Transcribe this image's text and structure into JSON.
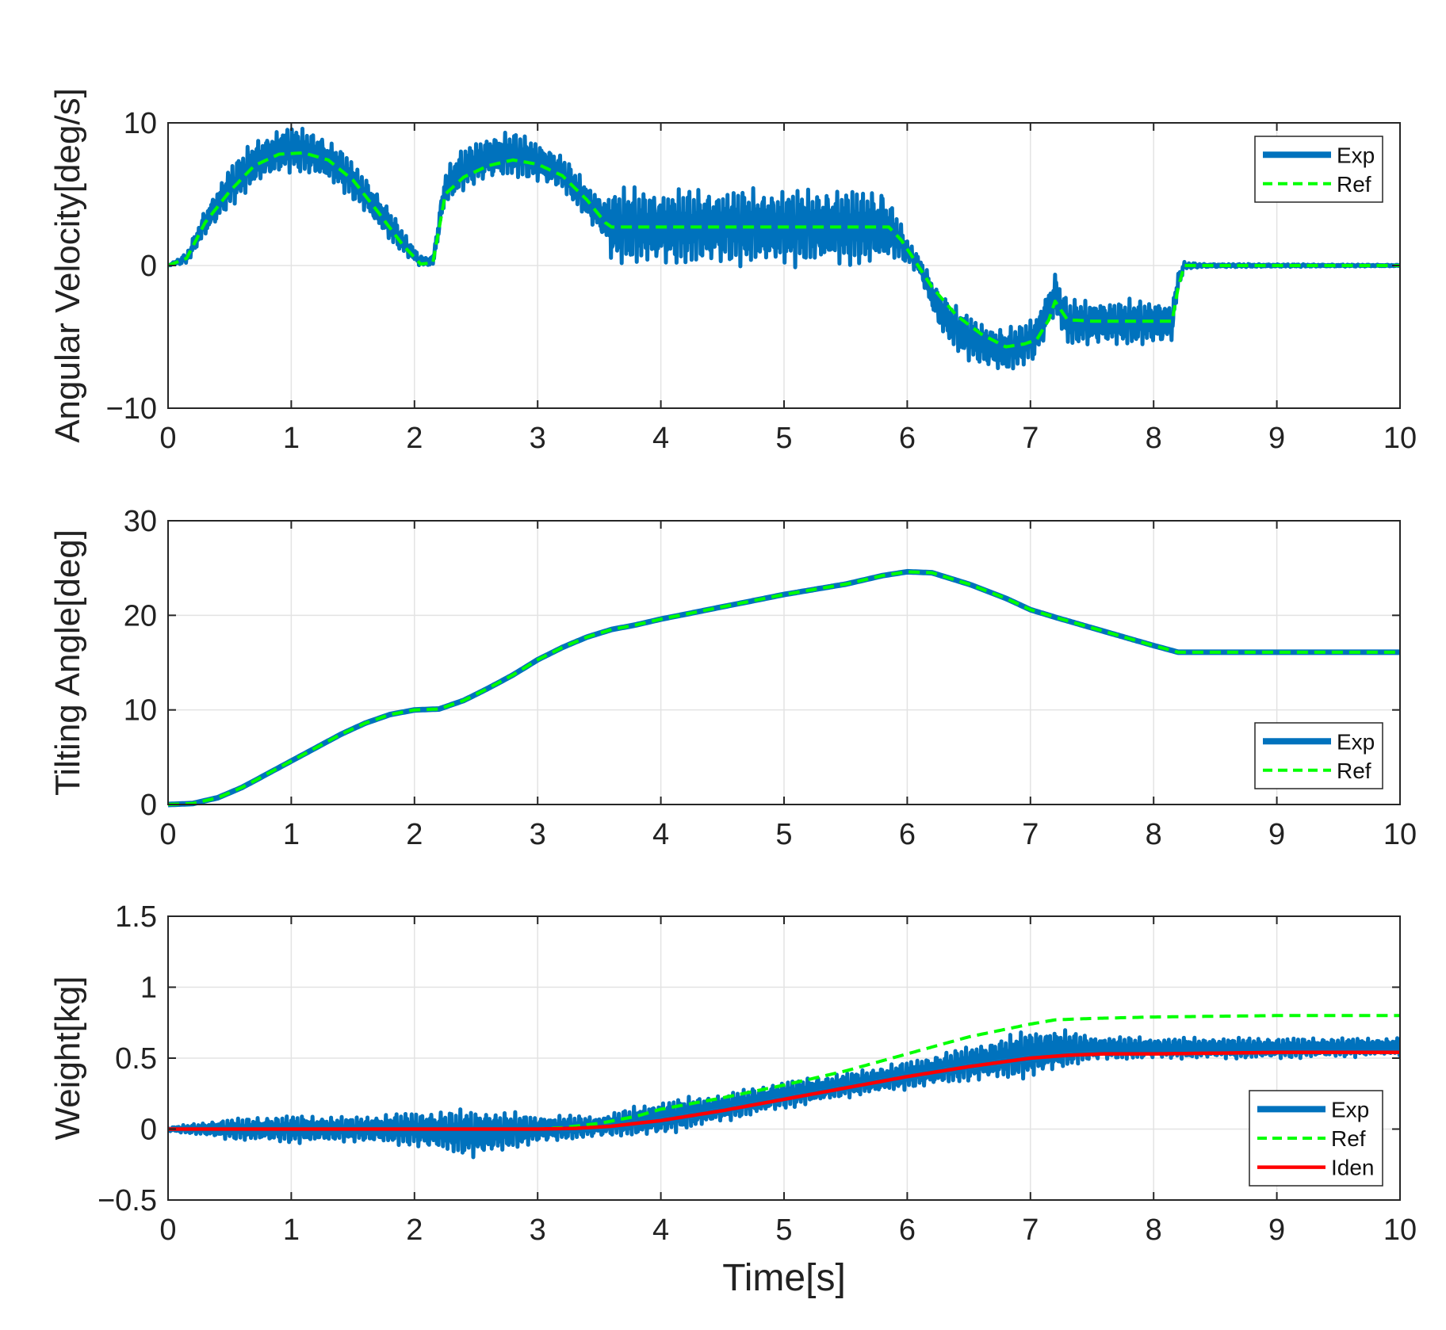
{
  "chart_data": [
    {
      "type": "line",
      "ylabel": "Angular Velocity[deg/s]",
      "xlabel": "",
      "xlim": [
        0,
        10
      ],
      "ylim": [
        -10,
        10
      ],
      "xticks": [
        "0",
        "1",
        "2",
        "3",
        "4",
        "5",
        "6",
        "7",
        "8",
        "9",
        "10"
      ],
      "yticks": [
        "10",
        "0",
        "−10"
      ],
      "ytick_values": [
        10,
        0,
        -10
      ],
      "grid": true,
      "legend_position": "top-right",
      "series": [
        {
          "name": "Exp",
          "color": "#0072BD",
          "style": "solid-noisy",
          "x": [
            0,
            0.15,
            0.3,
            0.5,
            0.7,
            0.9,
            1.0,
            1.2,
            1.4,
            1.6,
            1.8,
            1.95,
            2.05,
            2.15,
            2.25,
            2.4,
            2.6,
            2.8,
            3.0,
            3.2,
            3.4,
            3.55,
            3.6,
            4.0,
            4.5,
            5.0,
            5.5,
            5.8,
            5.9,
            6.0,
            6.1,
            6.25,
            6.4,
            6.6,
            6.8,
            6.95,
            7.05,
            7.15,
            7.2,
            7.3,
            7.5,
            7.8,
            8.1,
            8.15,
            8.2,
            8.25,
            8.4,
            10
          ],
          "y": [
            0,
            0.5,
            3,
            5.5,
            7.2,
            8,
            8.2,
            7.8,
            6.8,
            5,
            2.8,
            1.2,
            0.3,
            0.3,
            5.5,
            6.8,
            7.6,
            7.8,
            7.3,
            6.5,
            4.5,
            3.2,
            2.8,
            2.7,
            2.7,
            2.7,
            2.7,
            2.7,
            2.2,
            1,
            0,
            -3,
            -4.5,
            -5.5,
            -6,
            -5.5,
            -5,
            -3,
            -2,
            -4,
            -4,
            -4,
            -4,
            -4,
            -1,
            0,
            0,
            0
          ],
          "noise_amplitude": [
            0,
            0.3,
            0.8,
            1.2,
            1.3,
            1.3,
            1.3,
            1.3,
            1.2,
            1.0,
            1.0,
            0.5,
            0.3,
            0.3,
            1.0,
            1.2,
            1.3,
            1.3,
            1.2,
            1.0,
            1.0,
            1.3,
            2.2,
            2.2,
            2.2,
            2.2,
            2.2,
            2.2,
            1.5,
            0.7,
            0.5,
            1.2,
            1.3,
            1.3,
            1.3,
            1.2,
            1.3,
            1.3,
            1.3,
            1.3,
            1.3,
            1.3,
            1.3,
            1.0,
            0.5,
            0.2,
            0.1,
            0.05
          ]
        },
        {
          "name": "Ref",
          "color": "#00FF00",
          "style": "dashed",
          "x": [
            0,
            0.15,
            0.3,
            0.5,
            0.7,
            0.9,
            1.1,
            1.3,
            1.5,
            1.7,
            1.9,
            2.05,
            2.15,
            2.25,
            2.4,
            2.6,
            2.8,
            3.0,
            3.2,
            3.4,
            3.55,
            3.6,
            4.0,
            5.0,
            5.85,
            5.95,
            6.05,
            6.2,
            6.4,
            6.6,
            6.8,
            6.95,
            7.05,
            7.15,
            7.2,
            7.3,
            7.5,
            8.0,
            8.15,
            8.2,
            8.25,
            10
          ],
          "y": [
            0,
            0.5,
            3,
            5.2,
            7,
            7.8,
            7.9,
            7.4,
            6,
            3.8,
            1.5,
            0.1,
            0.2,
            5,
            6.2,
            7,
            7.4,
            7.1,
            6.3,
            4.6,
            3,
            2.7,
            2.7,
            2.7,
            2.7,
            1.8,
            0.5,
            -1.5,
            -3.5,
            -4.8,
            -5.7,
            -5.5,
            -5.2,
            -3.8,
            -2.5,
            -3.8,
            -3.9,
            -3.9,
            -3.9,
            -1.5,
            0,
            0
          ]
        }
      ]
    },
    {
      "type": "line",
      "ylabel": "Tilting Angle[deg]",
      "xlabel": "",
      "xlim": [
        0,
        10
      ],
      "ylim": [
        0,
        30
      ],
      "xticks": [
        "0",
        "1",
        "2",
        "3",
        "4",
        "5",
        "6",
        "7",
        "8",
        "9",
        "10"
      ],
      "yticks": [
        "30",
        "20",
        "10",
        "0"
      ],
      "ytick_values": [
        30,
        20,
        10,
        0
      ],
      "grid": true,
      "legend_position": "bottom-right",
      "series": [
        {
          "name": "Exp",
          "color": "#0072BD",
          "style": "solid",
          "x": [
            0,
            0.2,
            0.4,
            0.6,
            0.8,
            1.0,
            1.2,
            1.4,
            1.6,
            1.8,
            2.0,
            2.2,
            2.4,
            2.6,
            2.8,
            3.0,
            3.2,
            3.4,
            3.6,
            3.8,
            4.0,
            4.5,
            5.0,
            5.5,
            5.8,
            6.0,
            6.2,
            6.5,
            6.8,
            7.0,
            7.2,
            7.6,
            8.0,
            8.2,
            8.4,
            10
          ],
          "y": [
            0,
            0.1,
            0.7,
            1.8,
            3.2,
            4.6,
            6.0,
            7.4,
            8.6,
            9.5,
            10.0,
            10.1,
            11.0,
            12.3,
            13.7,
            15.3,
            16.6,
            17.7,
            18.5,
            19.0,
            19.6,
            20.9,
            22.2,
            23.3,
            24.2,
            24.6,
            24.5,
            23.3,
            21.8,
            20.6,
            19.8,
            18.3,
            16.8,
            16.1,
            16.1,
            16.1
          ]
        },
        {
          "name": "Ref",
          "color": "#00FF00",
          "style": "dashed",
          "x": [
            0,
            0.2,
            0.4,
            0.6,
            0.8,
            1.0,
            1.2,
            1.4,
            1.6,
            1.8,
            2.0,
            2.2,
            2.4,
            2.6,
            2.8,
            3.0,
            3.2,
            3.4,
            3.6,
            3.8,
            4.0,
            4.5,
            5.0,
            5.5,
            5.8,
            6.0,
            6.2,
            6.5,
            6.8,
            7.0,
            7.2,
            7.6,
            8.0,
            8.2,
            8.4,
            10
          ],
          "y": [
            0,
            0.1,
            0.7,
            1.8,
            3.2,
            4.6,
            6.0,
            7.4,
            8.6,
            9.5,
            10.0,
            10.1,
            11.0,
            12.3,
            13.7,
            15.3,
            16.6,
            17.7,
            18.5,
            19.0,
            19.6,
            20.9,
            22.2,
            23.3,
            24.2,
            24.6,
            24.5,
            23.3,
            21.8,
            20.6,
            19.8,
            18.3,
            16.8,
            16.1,
            16.1,
            16.1
          ]
        }
      ]
    },
    {
      "type": "line",
      "ylabel": "Weight[kg]",
      "xlabel": "Time[s]",
      "xlim": [
        0,
        10
      ],
      "ylim": [
        -0.5,
        1.5
      ],
      "xticks": [
        "0",
        "1",
        "2",
        "3",
        "4",
        "5",
        "6",
        "7",
        "8",
        "9",
        "10"
      ],
      "yticks": [
        "1.5",
        "1",
        "0.5",
        "0",
        "−0.5"
      ],
      "ytick_values": [
        1.5,
        1,
        0.5,
        0,
        -0.5
      ],
      "grid": true,
      "legend_position": "bottom-right",
      "series": [
        {
          "name": "Exp",
          "color": "#0072BD",
          "style": "solid-noisy",
          "x": [
            0,
            0.5,
            1.0,
            1.5,
            2.0,
            2.5,
            3.0,
            3.5,
            4.0,
            4.5,
            5.0,
            5.5,
            6.0,
            6.5,
            7.0,
            7.2,
            7.5,
            8.0,
            9.0,
            10
          ],
          "y": [
            0,
            0,
            0,
            0,
            0,
            -0.03,
            0,
            0.02,
            0.08,
            0.15,
            0.24,
            0.31,
            0.38,
            0.46,
            0.53,
            0.56,
            0.57,
            0.57,
            0.57,
            0.58
          ],
          "noise_amplitude": [
            0.01,
            0.06,
            0.08,
            0.07,
            0.1,
            0.14,
            0.08,
            0.06,
            0.1,
            0.08,
            0.08,
            0.07,
            0.08,
            0.1,
            0.14,
            0.12,
            0.07,
            0.06,
            0.06,
            0.05
          ]
        },
        {
          "name": "Ref",
          "color": "#00FF00",
          "style": "dashed",
          "x": [
            0,
            1,
            2,
            3.0,
            3.2,
            3.5,
            3.8,
            4.0,
            4.5,
            5.0,
            5.5,
            6.0,
            6.5,
            7.0,
            7.2,
            7.5,
            8.0,
            9.0,
            10
          ],
          "y": [
            0,
            0,
            0,
            0,
            0.01,
            0.04,
            0.09,
            0.14,
            0.22,
            0.31,
            0.41,
            0.53,
            0.65,
            0.74,
            0.77,
            0.78,
            0.79,
            0.8,
            0.8
          ]
        },
        {
          "name": "Iden",
          "color": "#FF0000",
          "style": "solid",
          "x": [
            0,
            1,
            2,
            3,
            3.3,
            3.6,
            4.0,
            4.5,
            5.0,
            5.5,
            6.0,
            6.5,
            7.0,
            7.3,
            7.6,
            8.0,
            9.0,
            10
          ],
          "y": [
            0,
            0,
            0,
            0,
            0.005,
            0.02,
            0.06,
            0.13,
            0.21,
            0.29,
            0.37,
            0.44,
            0.5,
            0.52,
            0.53,
            0.53,
            0.54,
            0.54
          ]
        }
      ]
    }
  ]
}
